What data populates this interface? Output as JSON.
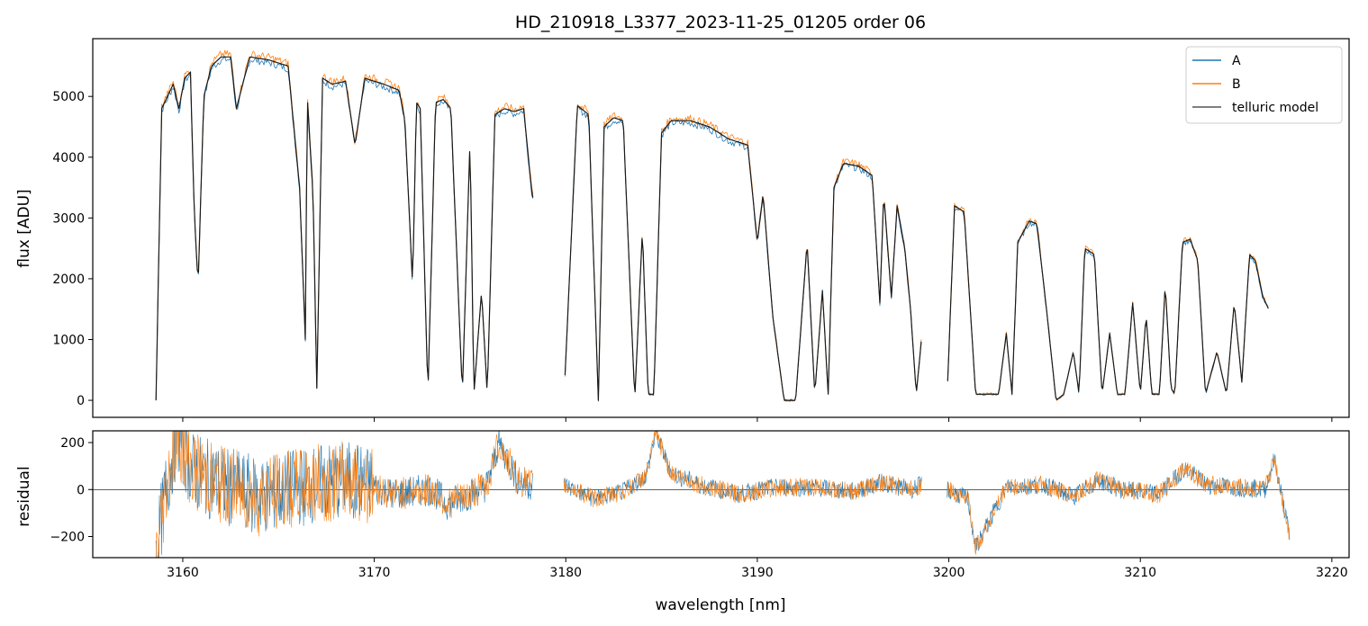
{
  "chart_data": [
    {
      "type": "line",
      "panel": "spectrum",
      "title": "HD_210918_L3377_2023-11-25_01205  order 06",
      "xlabel": "",
      "ylabel": "flux [ADU]",
      "xlim": [
        3155.3,
        3220.9
      ],
      "ylim": [
        -280,
        5950
      ],
      "yticks": [
        0,
        1000,
        2000,
        3000,
        4000,
        5000
      ],
      "xticks": [
        3160,
        3170,
        3180,
        3190,
        3200,
        3210,
        3220
      ],
      "legend_position": "upper-right",
      "gaps": [
        [
          3178.3,
          3179.9
        ],
        [
          3198.6,
          3199.9
        ]
      ],
      "series": [
        {
          "name": "A",
          "color": "#1f77b4"
        },
        {
          "name": "B",
          "color": "#ff7f0e"
        },
        {
          "name": "telluric model",
          "color": "#555555"
        }
      ],
      "x": [
        3158.6,
        3158.9,
        3159.2,
        3159.5,
        3159.8,
        3160.1,
        3160.4,
        3160.6,
        3160.8,
        3161.1,
        3161.5,
        3162.0,
        3162.5,
        3162.8,
        3163.5,
        3164.5,
        3165.5,
        3166.1,
        3166.4,
        3166.5,
        3166.8,
        3167.0,
        3167.3,
        3167.8,
        3168.5,
        3169.0,
        3169.5,
        3170.5,
        3171.3,
        3171.6,
        3172.0,
        3172.2,
        3172.4,
        3172.8,
        3173.2,
        3173.6,
        3174.0,
        3174.6,
        3175.0,
        3175.2,
        3175.6,
        3175.9,
        3176.3,
        3176.8,
        3177.3,
        3177.8,
        3178.2,
        3179.9,
        3180.6,
        3181.2,
        3181.7,
        3182.0,
        3182.5,
        3183.0,
        3183.6,
        3184.0,
        3184.3,
        3184.6,
        3185.0,
        3185.5,
        3186.5,
        3187.5,
        3188.5,
        3189.5,
        3190.0,
        3190.3,
        3190.8,
        3191.4,
        3192.0,
        3192.6,
        3193.0,
        3193.4,
        3193.7,
        3194.0,
        3194.5,
        3195.3,
        3196.0,
        3196.4,
        3196.6,
        3197.0,
        3197.3,
        3197.7,
        3198.0,
        3198.3,
        3198.6,
        3199.9,
        3200.3,
        3200.8,
        3201.4,
        3202.0,
        3202.6,
        3203.0,
        3203.3,
        3203.6,
        3204.2,
        3204.6,
        3205.1,
        3205.6,
        3206.0,
        3206.5,
        3206.8,
        3207.1,
        3207.6,
        3208.0,
        3208.4,
        3208.8,
        3209.2,
        3209.6,
        3210.0,
        3210.3,
        3210.6,
        3211.0,
        3211.3,
        3211.6,
        3211.8,
        3212.2,
        3212.6,
        3213.0,
        3213.4,
        3214.0,
        3214.5,
        3214.9,
        3215.3,
        3215.7,
        3216.0,
        3216.4,
        3216.7,
        3217.0,
        3217.3,
        3217.6,
        3217.8
      ],
      "flux": [
        0,
        4800,
        5000,
        5200,
        4800,
        5300,
        5400,
        3100,
        1900,
        5000,
        5500,
        5650,
        5650,
        4800,
        5650,
        5600,
        5500,
        3500,
        1000,
        5000,
        3400,
        200,
        5300,
        5200,
        5250,
        4200,
        5300,
        5200,
        5100,
        4600,
        1900,
        4900,
        4800,
        100,
        4900,
        4950,
        4800,
        100,
        4300,
        100,
        1800,
        100,
        4700,
        4800,
        4750,
        4800,
        3500,
        0,
        4850,
        4700,
        0,
        4500,
        4650,
        4600,
        0,
        2800,
        100,
        100,
        4400,
        4600,
        4600,
        4500,
        4300,
        4200,
        2600,
        3400,
        1400,
        0,
        0,
        2600,
        100,
        1800,
        100,
        3500,
        3900,
        3850,
        3700,
        1600,
        3400,
        1700,
        3200,
        2500,
        1500,
        100,
        1100,
        0,
        3200,
        3100,
        100,
        100,
        100,
        1100,
        100,
        2600,
        2950,
        2900,
        1500,
        0,
        100,
        800,
        100,
        2500,
        2400,
        100,
        1100,
        100,
        100,
        1600,
        100,
        1400,
        100,
        100,
        1900,
        200,
        100,
        2600,
        2650,
        2300,
        100,
        800,
        100,
        1600,
        300,
        2400,
        2300,
        1700,
        1500
      ],
      "xtick_labels": [
        "3160",
        "3170",
        "3180",
        "3190",
        "3200",
        "3210",
        "3220"
      ],
      "ytick_labels": [
        "0",
        "1000",
        "2000",
        "3000",
        "4000",
        "5000"
      ]
    },
    {
      "type": "line",
      "panel": "residual",
      "xlabel": "wavelength [nm]",
      "ylabel": "residual",
      "xlim": [
        3155.3,
        3220.9
      ],
      "ylim": [
        -290,
        250
      ],
      "yticks": [
        -200,
        0,
        200
      ],
      "xticks": [
        3160,
        3170,
        3180,
        3190,
        3200,
        3210,
        3220
      ],
      "zero_line": true,
      "series": [
        {
          "name": "A",
          "color": "#1f77b4"
        },
        {
          "name": "B",
          "color": "#ff7f0e"
        }
      ],
      "x": [
        3158.6,
        3159.2,
        3159.7,
        3160.5,
        3162.0,
        3164.0,
        3166.0,
        3167.5,
        3169.0,
        3171.0,
        3173.0,
        3173.8,
        3175.0,
        3175.9,
        3176.5,
        3177.5,
        3178.2,
        3179.9,
        3181.5,
        3183.0,
        3184.2,
        3184.7,
        3185.5,
        3187.0,
        3189.0,
        3191.0,
        3193.0,
        3195.0,
        3196.5,
        3198.0,
        3198.6,
        3199.9,
        3201.0,
        3201.4,
        3203.0,
        3205.0,
        3206.5,
        3207.8,
        3209.0,
        3211.0,
        3212.3,
        3213.5,
        3215.0,
        3216.5,
        3217.0,
        3217.8
      ],
      "residual": [
        -280,
        40,
        240,
        80,
        20,
        -30,
        10,
        30,
        40,
        -20,
        0,
        -60,
        -20,
        20,
        200,
        40,
        20,
        20,
        -40,
        -10,
        60,
        240,
        70,
        20,
        -20,
        10,
        10,
        -10,
        30,
        0,
        20,
        0,
        -40,
        -250,
        10,
        20,
        -30,
        40,
        0,
        -20,
        90,
        20,
        10,
        0,
        130,
        -200
      ],
      "ytick_labels": [
        "−200",
        "0",
        "200"
      ]
    }
  ]
}
